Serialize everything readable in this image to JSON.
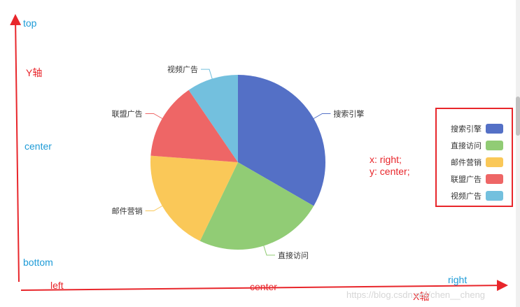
{
  "chart_data": {
    "type": "pie",
    "series": [
      {
        "name": "搜索引擎",
        "value": 35,
        "color": "#5470c6"
      },
      {
        "name": "直接访问",
        "value": 25,
        "color": "#91cc75"
      },
      {
        "name": "邮件营销",
        "value": 20,
        "color": "#fac858"
      },
      {
        "name": "联盟广告",
        "value": 15,
        "color": "#ee6666"
      },
      {
        "name": "视频广告",
        "value": 10,
        "color": "#73c0de"
      }
    ],
    "legend_placement": "right-center"
  },
  "annotations": {
    "top": "top",
    "y_axis": "Y轴",
    "center_left": "center",
    "bottom": "bottom",
    "left": "left",
    "center_bottom": "center",
    "right": "right",
    "x_axis": "X轴",
    "xy_line1": "x: right;",
    "xy_line2": "y: center;"
  },
  "watermark": "https://blog.csdn.net/chen__cheng",
  "colors": {
    "axis_red": "#e8262b",
    "annotation_blue": "#1e9bd7"
  }
}
